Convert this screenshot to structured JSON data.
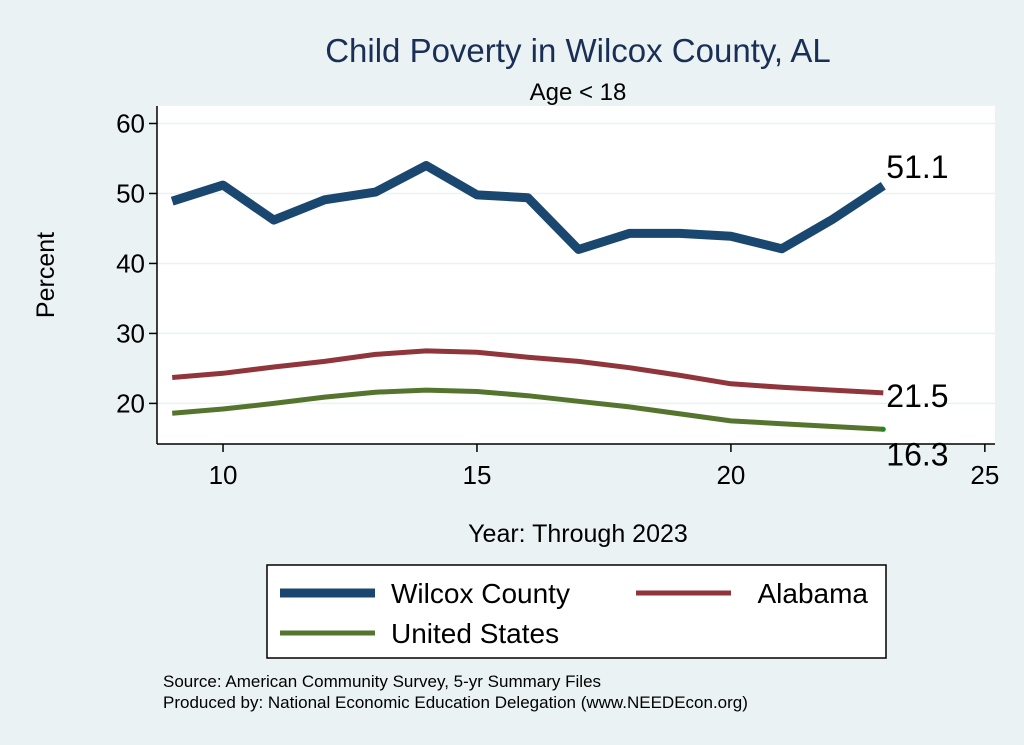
{
  "chart_data": {
    "type": "line",
    "title": "Child Poverty in Wilcox County, AL",
    "subtitle": "Age < 18",
    "xlabel": "Year: Through 2023",
    "ylabel": "Percent",
    "xlim": [
      8.7,
      25.2
    ],
    "ylim": [
      14.2,
      62.5
    ],
    "xticks": [
      10,
      15,
      20,
      25
    ],
    "yticks": [
      20,
      30,
      40,
      50,
      60
    ],
    "grid": true,
    "legend_position": "bottom",
    "x": [
      9,
      10,
      11,
      12,
      13,
      14,
      15,
      16,
      17,
      18,
      19,
      20,
      21,
      22,
      23
    ],
    "series": [
      {
        "name": "Wilcox County",
        "color": "#1a476f",
        "values": [
          48.9,
          51.2,
          46.2,
          49.1,
          50.2,
          54.0,
          49.8,
          49.4,
          42.0,
          44.3,
          44.3,
          43.9,
          42.1,
          46.3,
          51.1
        ],
        "end_label": "51.1"
      },
      {
        "name": "Alabama",
        "color": "#90353b",
        "values": [
          23.7,
          24.3,
          25.2,
          26.0,
          27.0,
          27.5,
          27.3,
          26.6,
          26.0,
          25.1,
          24.0,
          22.8,
          22.3,
          21.9,
          21.5
        ],
        "end_label": "21.5"
      },
      {
        "name": "United States",
        "color": "#55752f",
        "values": [
          18.6,
          19.2,
          20.0,
          20.9,
          21.6,
          21.9,
          21.7,
          21.1,
          20.3,
          19.5,
          18.5,
          17.5,
          17.1,
          16.7,
          16.3
        ],
        "end_label": "16.3"
      }
    ]
  },
  "source_lines": [
    "Source: American Community Survey, 5-yr Summary Files",
    "Produced by: National Economic Education Delegation (www.NEEDEcon.org)"
  ]
}
